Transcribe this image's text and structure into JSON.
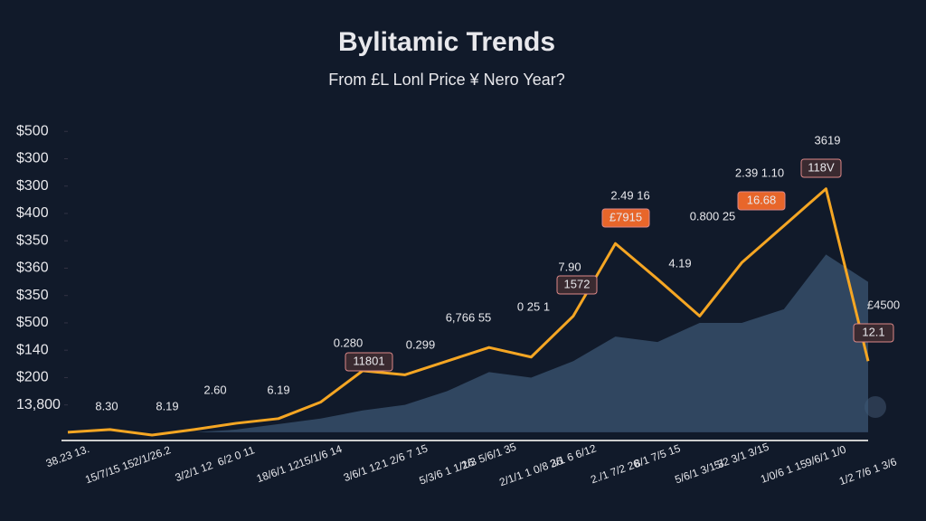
{
  "chart_data": {
    "type": "line",
    "title": "Bylitamic Trends",
    "subtitle": "From £L Lonl Price ¥ Nero Year?",
    "categories": [
      "38.23 13.",
      "15/7/15 15",
      "2/1/26.2",
      "3/2/1 12",
      "6/2 0 11",
      "18/6/1 12",
      "15/1/6 14",
      "3/6/1 12",
      "1 2/6 7 15",
      "5/3/6 1 1/16",
      "2/3 5/6/1 35",
      "2/1/1 1 0/8 36",
      "2/1 6 6/12",
      "2./1 7/2 26",
      "8/1 7/5 15",
      "5/6/1 3/1 3",
      "5/2 3/1 3/15",
      "1/0/6 1 15",
      "9/6/1 1/0",
      "1/2 7/6 1 3/6"
    ],
    "series": [
      {
        "color": "#f5a623",
        "values": [
          0,
          0.1,
          -0.1,
          0.1,
          0.33,
          0.5,
          1.1,
          2.25,
          2.1,
          2.6,
          3.1,
          2.75,
          4.25,
          6.9,
          5.6,
          4.25,
          6.2,
          7.55,
          8.9,
          2.6
        ]
      },
      {
        "color": "#3d5a78",
        "fill": true,
        "values": [
          0,
          0,
          0,
          0,
          0.1,
          0.3,
          0.5,
          0.8,
          1.0,
          1.5,
          2.2,
          2.0,
          2.6,
          3.5,
          3.3,
          4.0,
          4.0,
          4.5,
          6.5,
          5.5
        ]
      }
    ],
    "ylim": [
      -0.3,
      12
    ],
    "yticks": [
      {
        "value": 1,
        "label": "13,800"
      },
      {
        "value": 2,
        "label": "$200"
      },
      {
        "value": 3,
        "label": "$140"
      },
      {
        "value": 4,
        "label": "$500"
      },
      {
        "value": 5,
        "label": "$350"
      },
      {
        "value": 6,
        "label": "$360"
      },
      {
        "value": 7,
        "label": "$350"
      },
      {
        "value": 8,
        "label": "$400"
      },
      {
        "value": 9,
        "label": "$300"
      },
      {
        "value": 10,
        "label": "$300"
      },
      {
        "value": 11,
        "label": "$500"
      }
    ],
    "annotations": [
      {
        "text": "8.30",
        "style": "plain"
      },
      {
        "text": "8.19",
        "style": "plain"
      },
      {
        "text": "2.60",
        "style": "plain"
      },
      {
        "text": "6.19",
        "style": "plain"
      },
      {
        "text": "0.280",
        "style": "plain"
      },
      {
        "text": "11801",
        "style": "box"
      },
      {
        "text": "0.299",
        "style": "plain"
      },
      {
        "text": "6,766 55",
        "style": "plain"
      },
      {
        "text": "0 25 1",
        "style": "plain"
      },
      {
        "text": "7.90",
        "style": "plain"
      },
      {
        "text": "1572",
        "style": "box"
      },
      {
        "text": "2.49 16",
        "style": "plain"
      },
      {
        "text": "£7915",
        "style": "orange"
      },
      {
        "text": "0.800 25",
        "style": "plain"
      },
      {
        "text": "4.19",
        "style": "plain"
      },
      {
        "text": "2.39 1.10",
        "style": "plain"
      },
      {
        "text": "16.68",
        "style": "orange"
      },
      {
        "text": "3619",
        "style": "plain"
      },
      {
        "text": "118V",
        "style": "box"
      },
      {
        "text": "£4500",
        "style": "plain"
      },
      {
        "text": "12.1",
        "style": "box"
      }
    ]
  }
}
